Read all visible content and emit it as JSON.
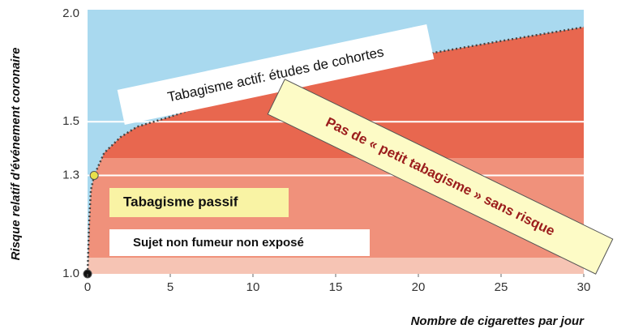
{
  "chart_data": {
    "type": "area",
    "xlabel": "Nombre de cigarettes par jour",
    "ylabel": "Risque relatif d'événement coronaire",
    "x": [
      0,
      0.1,
      0.2,
      0.4,
      1,
      2,
      3,
      5,
      10,
      15,
      20,
      25,
      30
    ],
    "series": [
      {
        "color": "#e8674f",
        "values": [
          1.0,
          1.15,
          1.25,
          1.3,
          1.38,
          1.44,
          1.48,
          1.52,
          1.64,
          1.71,
          1.79,
          1.86,
          1.93
        ]
      }
    ],
    "points": [
      {
        "x": 0,
        "y": 1.0,
        "color": "#111111"
      },
      {
        "x": 0.4,
        "y": 1.3,
        "color": "#e8e04a"
      }
    ],
    "xlim": [
      0,
      30
    ],
    "xticks": [
      0,
      5,
      10,
      15,
      20,
      25,
      30
    ],
    "ylim": [
      1.0,
      2.0
    ],
    "ylog": true,
    "yticks": [
      {
        "value": 1.0,
        "label": "1.0"
      },
      {
        "value": 1.3,
        "label": "1.3"
      },
      {
        "value": 1.5,
        "label": "1.5"
      },
      {
        "value": 2.0,
        "label": "2.0"
      }
    ],
    "grid": true,
    "annotations": [
      "Tabagisme actif: études de cohortes",
      "Pas de « petit tabagisme » sans risque",
      "Tabagisme passif",
      "Sujet non fumeur non exposé"
    ]
  }
}
